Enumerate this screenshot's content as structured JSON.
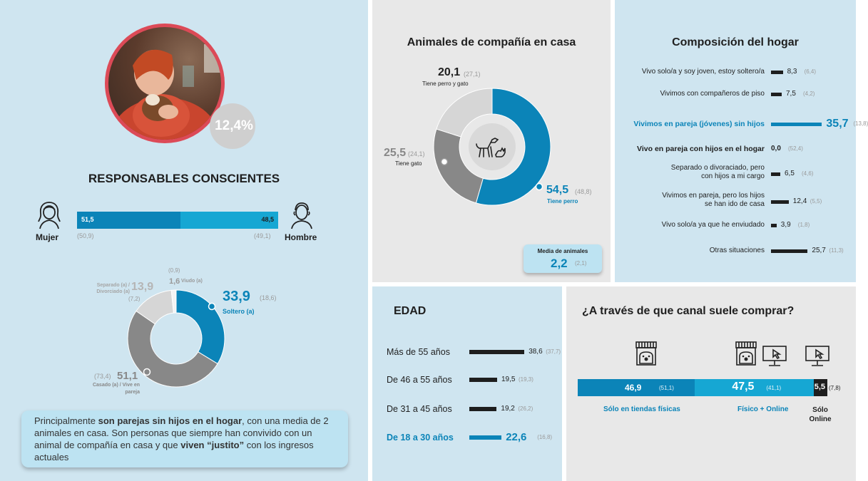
{
  "colors": {
    "blue_dark": "#0b84b8",
    "blue_light": "#16a7d3",
    "grey_dark": "#888888",
    "grey_light": "#d6d6d6",
    "black_bar": "#1e1e1e",
    "photo_ring": "#dc4a57",
    "bg_blue": "#cfe5f0",
    "bg_grey": "#e8e8e8"
  },
  "profile": {
    "percent": "12,4%",
    "title": "RESPONSABLES CONSCIENTES",
    "gender": {
      "female_label": "Mujer",
      "male_label": "Hombre",
      "female_value": "51,5",
      "male_value": "48,5",
      "female_prev": "(50,9)",
      "male_prev": "(49,1)",
      "female_share": 51.5,
      "male_share": 48.5
    },
    "civil": {
      "single_value": "33,9",
      "single_prev": "(18,6)",
      "single_label": "Soltero (a)",
      "married_value": "51,1",
      "married_prev": "(73,4)",
      "married_label_1": "Casado (a) / Vive en",
      "married_label_2": "pareja",
      "separated_value": "13,9",
      "separated_prev": "(7,2)",
      "separated_label_1": "Separado (a) /",
      "separated_label_2": "Divorciado (a)",
      "widow_value": "1,6",
      "widow_prev": "(0,9)",
      "widow_label": "Viudo (a)"
    },
    "summary_parts": [
      {
        "text": "Principalmente ",
        "bold": false
      },
      {
        "text": "son parejas sin hijos en el hogar",
        "bold": true
      },
      {
        "text": ", con una media de 2 animales en casa. Son personas que siempre han convivido con un animal de compañía en casa  y que ",
        "bold": false
      },
      {
        "text": "viven “justito”",
        "bold": true
      },
      {
        "text": " con los ingresos actuales",
        "bold": false
      }
    ]
  },
  "pets": {
    "title": "Animales de compañía en casa",
    "dog_value": "54,5",
    "dog_prev": "(48,8)",
    "dog_label": "Tiene perro",
    "cat_value": "25,5",
    "cat_prev": "(24,1)",
    "cat_label": "Tiene gato",
    "both_value": "20,1",
    "both_prev": "(27,1)",
    "both_label": "Tiene perro y gato",
    "mean_label": "Media de animales",
    "mean_value": "2,2",
    "mean_prev": "(2,1)"
  },
  "hogar": {
    "title": "Composición del hogar",
    "rows": [
      {
        "label_1": "Vivo solo/a y soy joven, estoy soltero/a",
        "label_2": "",
        "value": "8,3",
        "prev": "(6,4)",
        "v": 8.3,
        "highlight": false,
        "strong": false
      },
      {
        "label_1": "Vivimos con compañeros de piso",
        "label_2": "",
        "value": "7,5",
        "prev": "(4,2)",
        "v": 7.5,
        "highlight": false,
        "strong": false
      },
      {
        "label_1": "Vivimos en pareja (jóvenes) sin hijos",
        "label_2": "",
        "value": "35,7",
        "prev": "(13,8)",
        "v": 35.7,
        "highlight": true,
        "strong": false
      },
      {
        "label_1": "Vivo en pareja con hijos en el hogar",
        "label_2": "",
        "value": "0,0",
        "prev": "(52,4)",
        "v": 0.0,
        "highlight": false,
        "strong": true
      },
      {
        "label_1": "Separado o divoraciado, pero",
        "label_2": "con hijos a mi cargo",
        "value": "6,5",
        "prev": "(4,6)",
        "v": 6.5,
        "highlight": false,
        "strong": false
      },
      {
        "label_1": "Vivimos en pareja, pero los hijos",
        "label_2": "se han ido de casa",
        "value": "12,4",
        "prev": "(5,5)",
        "v": 12.4,
        "highlight": false,
        "strong": false
      },
      {
        "label_1": "Vivo solo/a ya que he enviudado",
        "label_2": "",
        "value": "3,9",
        "prev": "(1,8)",
        "v": 3.9,
        "highlight": false,
        "strong": false
      },
      {
        "label_1": "Otras situaciones",
        "label_2": "",
        "value": "25,7",
        "prev": "(11,3)",
        "v": 25.7,
        "highlight": false,
        "strong": false
      }
    ]
  },
  "edad": {
    "title": "EDAD",
    "rows": [
      {
        "label": "Más de 55 años",
        "value": "38,6",
        "prev": "(37,7)",
        "v": 38.6,
        "highlight": false
      },
      {
        "label": "De 46 a 55 años",
        "value": "19,5",
        "prev": "(19,3)",
        "v": 19.5,
        "highlight": false
      },
      {
        "label": "De 31 a 45 años",
        "value": "19,2",
        "prev": "(26,2)",
        "v": 19.2,
        "highlight": false
      },
      {
        "label": "De 18 a 30 años",
        "value": "22,6",
        "prev": "(16,8)",
        "v": 22.6,
        "highlight": true
      }
    ]
  },
  "canal": {
    "title": "¿A través de que canal suele comprar?",
    "physical_value": "46,9",
    "physical_prev": "(51,1)",
    "physical_label": "Sólo en tiendas físicas",
    "physical_share": 46.9,
    "both_value": "47,5",
    "both_prev": "(41,1)",
    "both_label": "Físico + Online",
    "both_share": 47.5,
    "online_value": "5,5",
    "online_prev": "(7,8)",
    "online_label_1": "Sólo",
    "online_label_2": "Online",
    "online_share": 5.5
  }
}
